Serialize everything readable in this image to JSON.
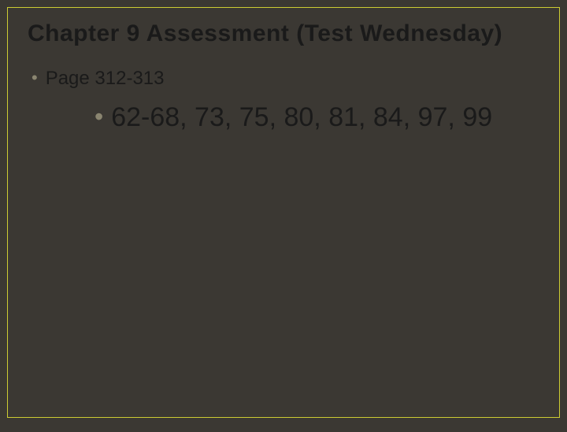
{
  "slide": {
    "title": "Chapter 9 Assessment (Test Wednesday)",
    "background_color": "#3b3833",
    "border_color": "#cccc33",
    "title_color": "#1a1a1a",
    "title_fontsize": 30,
    "bullet_color": "#8a8570",
    "text_color": "#1a1a1a",
    "level1": {
      "bullet": "•",
      "text": "Page 312-313",
      "fontsize": 24
    },
    "level2": {
      "bullet": "•",
      "text": "62-68, 73, 75, 80, 81, 84, 97, 99",
      "fontsize": 34
    }
  }
}
